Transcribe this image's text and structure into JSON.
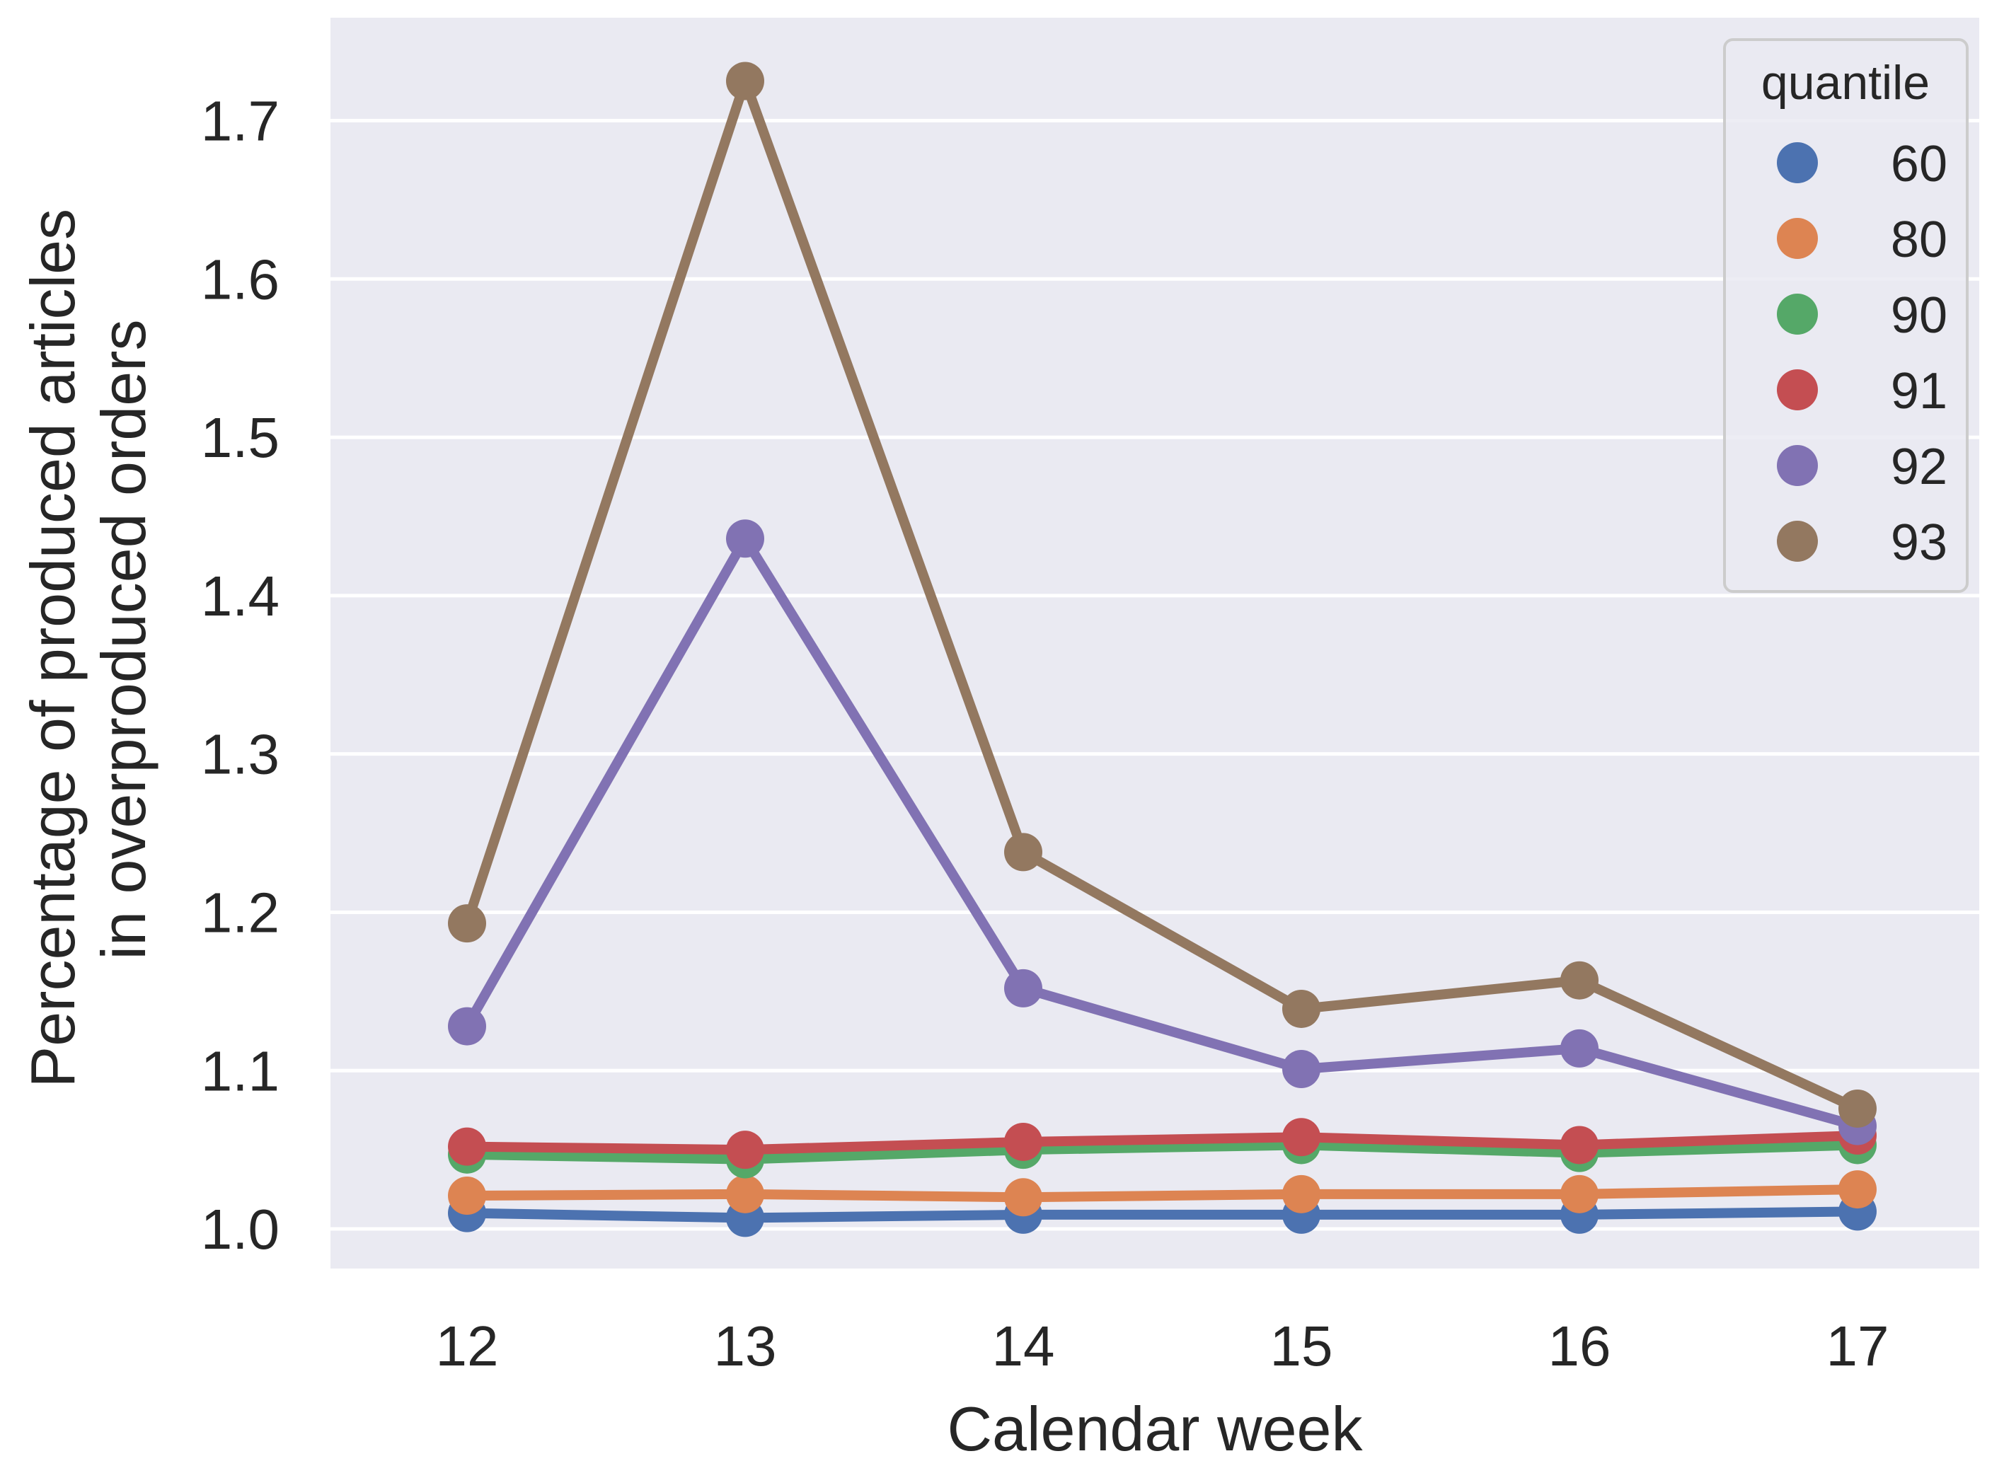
{
  "chart_data": {
    "type": "line",
    "title": "",
    "xlabel": "Calendar week",
    "ylabel_lines": [
      "Percentage of produced articles",
      "in overproduced orders"
    ],
    "categories": [
      "12",
      "13",
      "14",
      "15",
      "16",
      "17"
    ],
    "ylim": [
      0.975,
      1.765
    ],
    "yticks": [
      1.0,
      1.1,
      1.2,
      1.3,
      1.4,
      1.5,
      1.6,
      1.7
    ],
    "ytick_labels": [
      "1.0",
      "1.1",
      "1.2",
      "1.3",
      "1.4",
      "1.5",
      "1.6",
      "1.7"
    ],
    "grid": true,
    "legend": {
      "title": "quantile",
      "position": "top-right"
    },
    "series": [
      {
        "name": "60",
        "color": "#4c72b0",
        "values": [
          1.01,
          1.007,
          1.009,
          1.009,
          1.009,
          1.011
        ]
      },
      {
        "name": "80",
        "color": "#dd8452",
        "values": [
          1.021,
          1.022,
          1.02,
          1.022,
          1.022,
          1.025
        ]
      },
      {
        "name": "90",
        "color": "#55a868",
        "values": [
          1.047,
          1.044,
          1.05,
          1.053,
          1.048,
          1.053
        ]
      },
      {
        "name": "91",
        "color": "#c44e52",
        "values": [
          1.052,
          1.05,
          1.055,
          1.058,
          1.053,
          1.059
        ]
      },
      {
        "name": "92",
        "color": "#8172b3",
        "values": [
          1.128,
          1.436,
          1.152,
          1.101,
          1.114,
          1.065
        ]
      },
      {
        "name": "93",
        "color": "#937860",
        "values": [
          1.193,
          1.725,
          1.238,
          1.139,
          1.157,
          1.076
        ]
      }
    ]
  }
}
